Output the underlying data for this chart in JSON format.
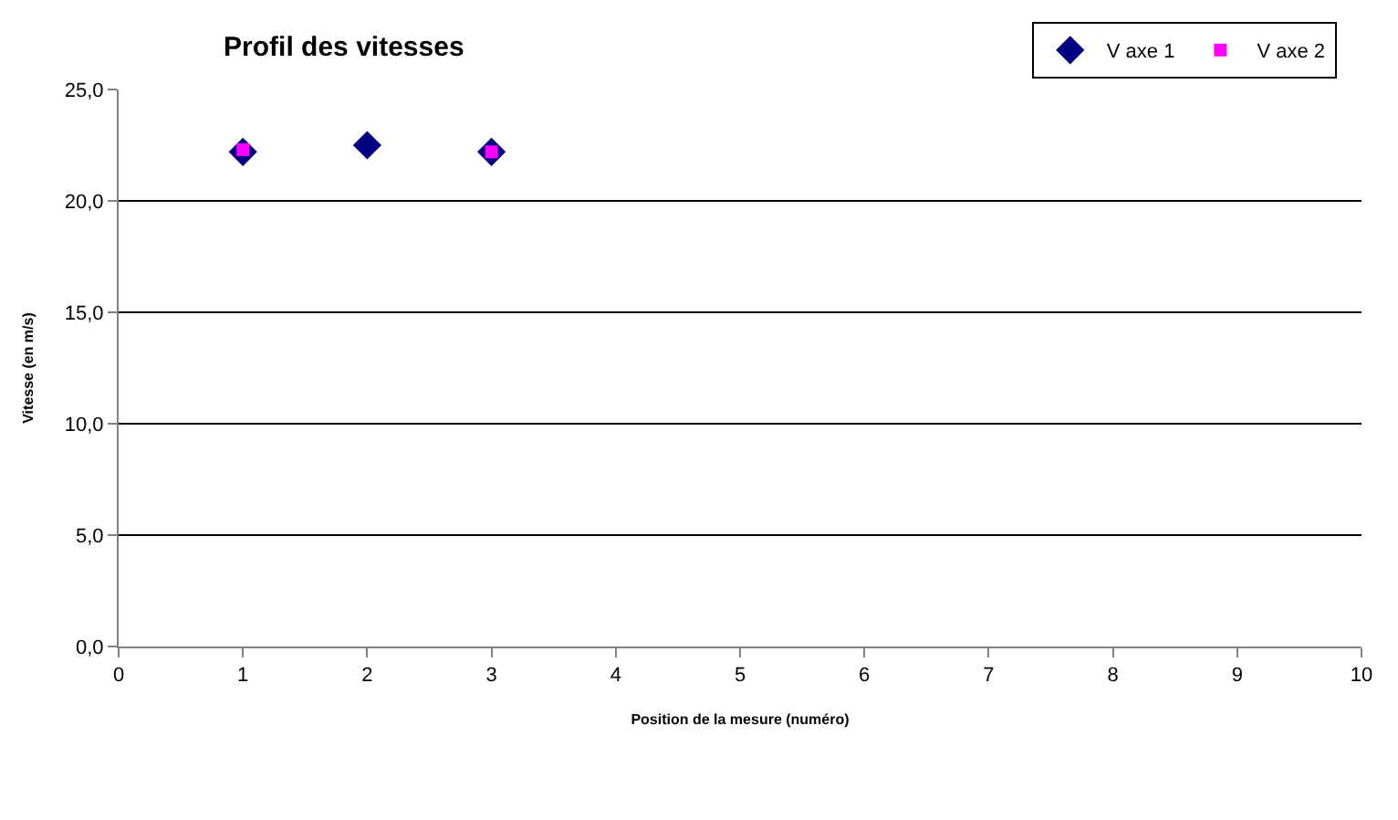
{
  "chart_data": {
    "type": "scatter",
    "title": "Profil des vitesses",
    "xlabel": "Position de la mesure (numéro)",
    "ylabel": "Vitesse (en m/s)",
    "x": [
      1,
      2,
      3
    ],
    "series": [
      {
        "name": "V axe 1",
        "color": "#000080",
        "values": [
          22.2,
          22.5,
          22.2
        ],
        "marker": "diamond"
      },
      {
        "name": "V axe 2",
        "color": "#ff00ff",
        "values": [
          22.3,
          null,
          22.2
        ],
        "marker": "square"
      }
    ],
    "xlim": [
      0,
      10
    ],
    "xticks": [
      0,
      1,
      2,
      3,
      4,
      5,
      6,
      7,
      8,
      9,
      10
    ],
    "ylim": [
      0,
      25
    ],
    "yticks": [
      {
        "value": 0,
        "label": "0,0"
      },
      {
        "value": 5,
        "label": "5,0"
      },
      {
        "value": 10,
        "label": "10,0"
      },
      {
        "value": 15,
        "label": "15,0"
      },
      {
        "value": 20,
        "label": "20,0"
      },
      {
        "value": 25,
        "label": "25,0"
      }
    ],
    "grid": "y",
    "legend": "top right"
  }
}
